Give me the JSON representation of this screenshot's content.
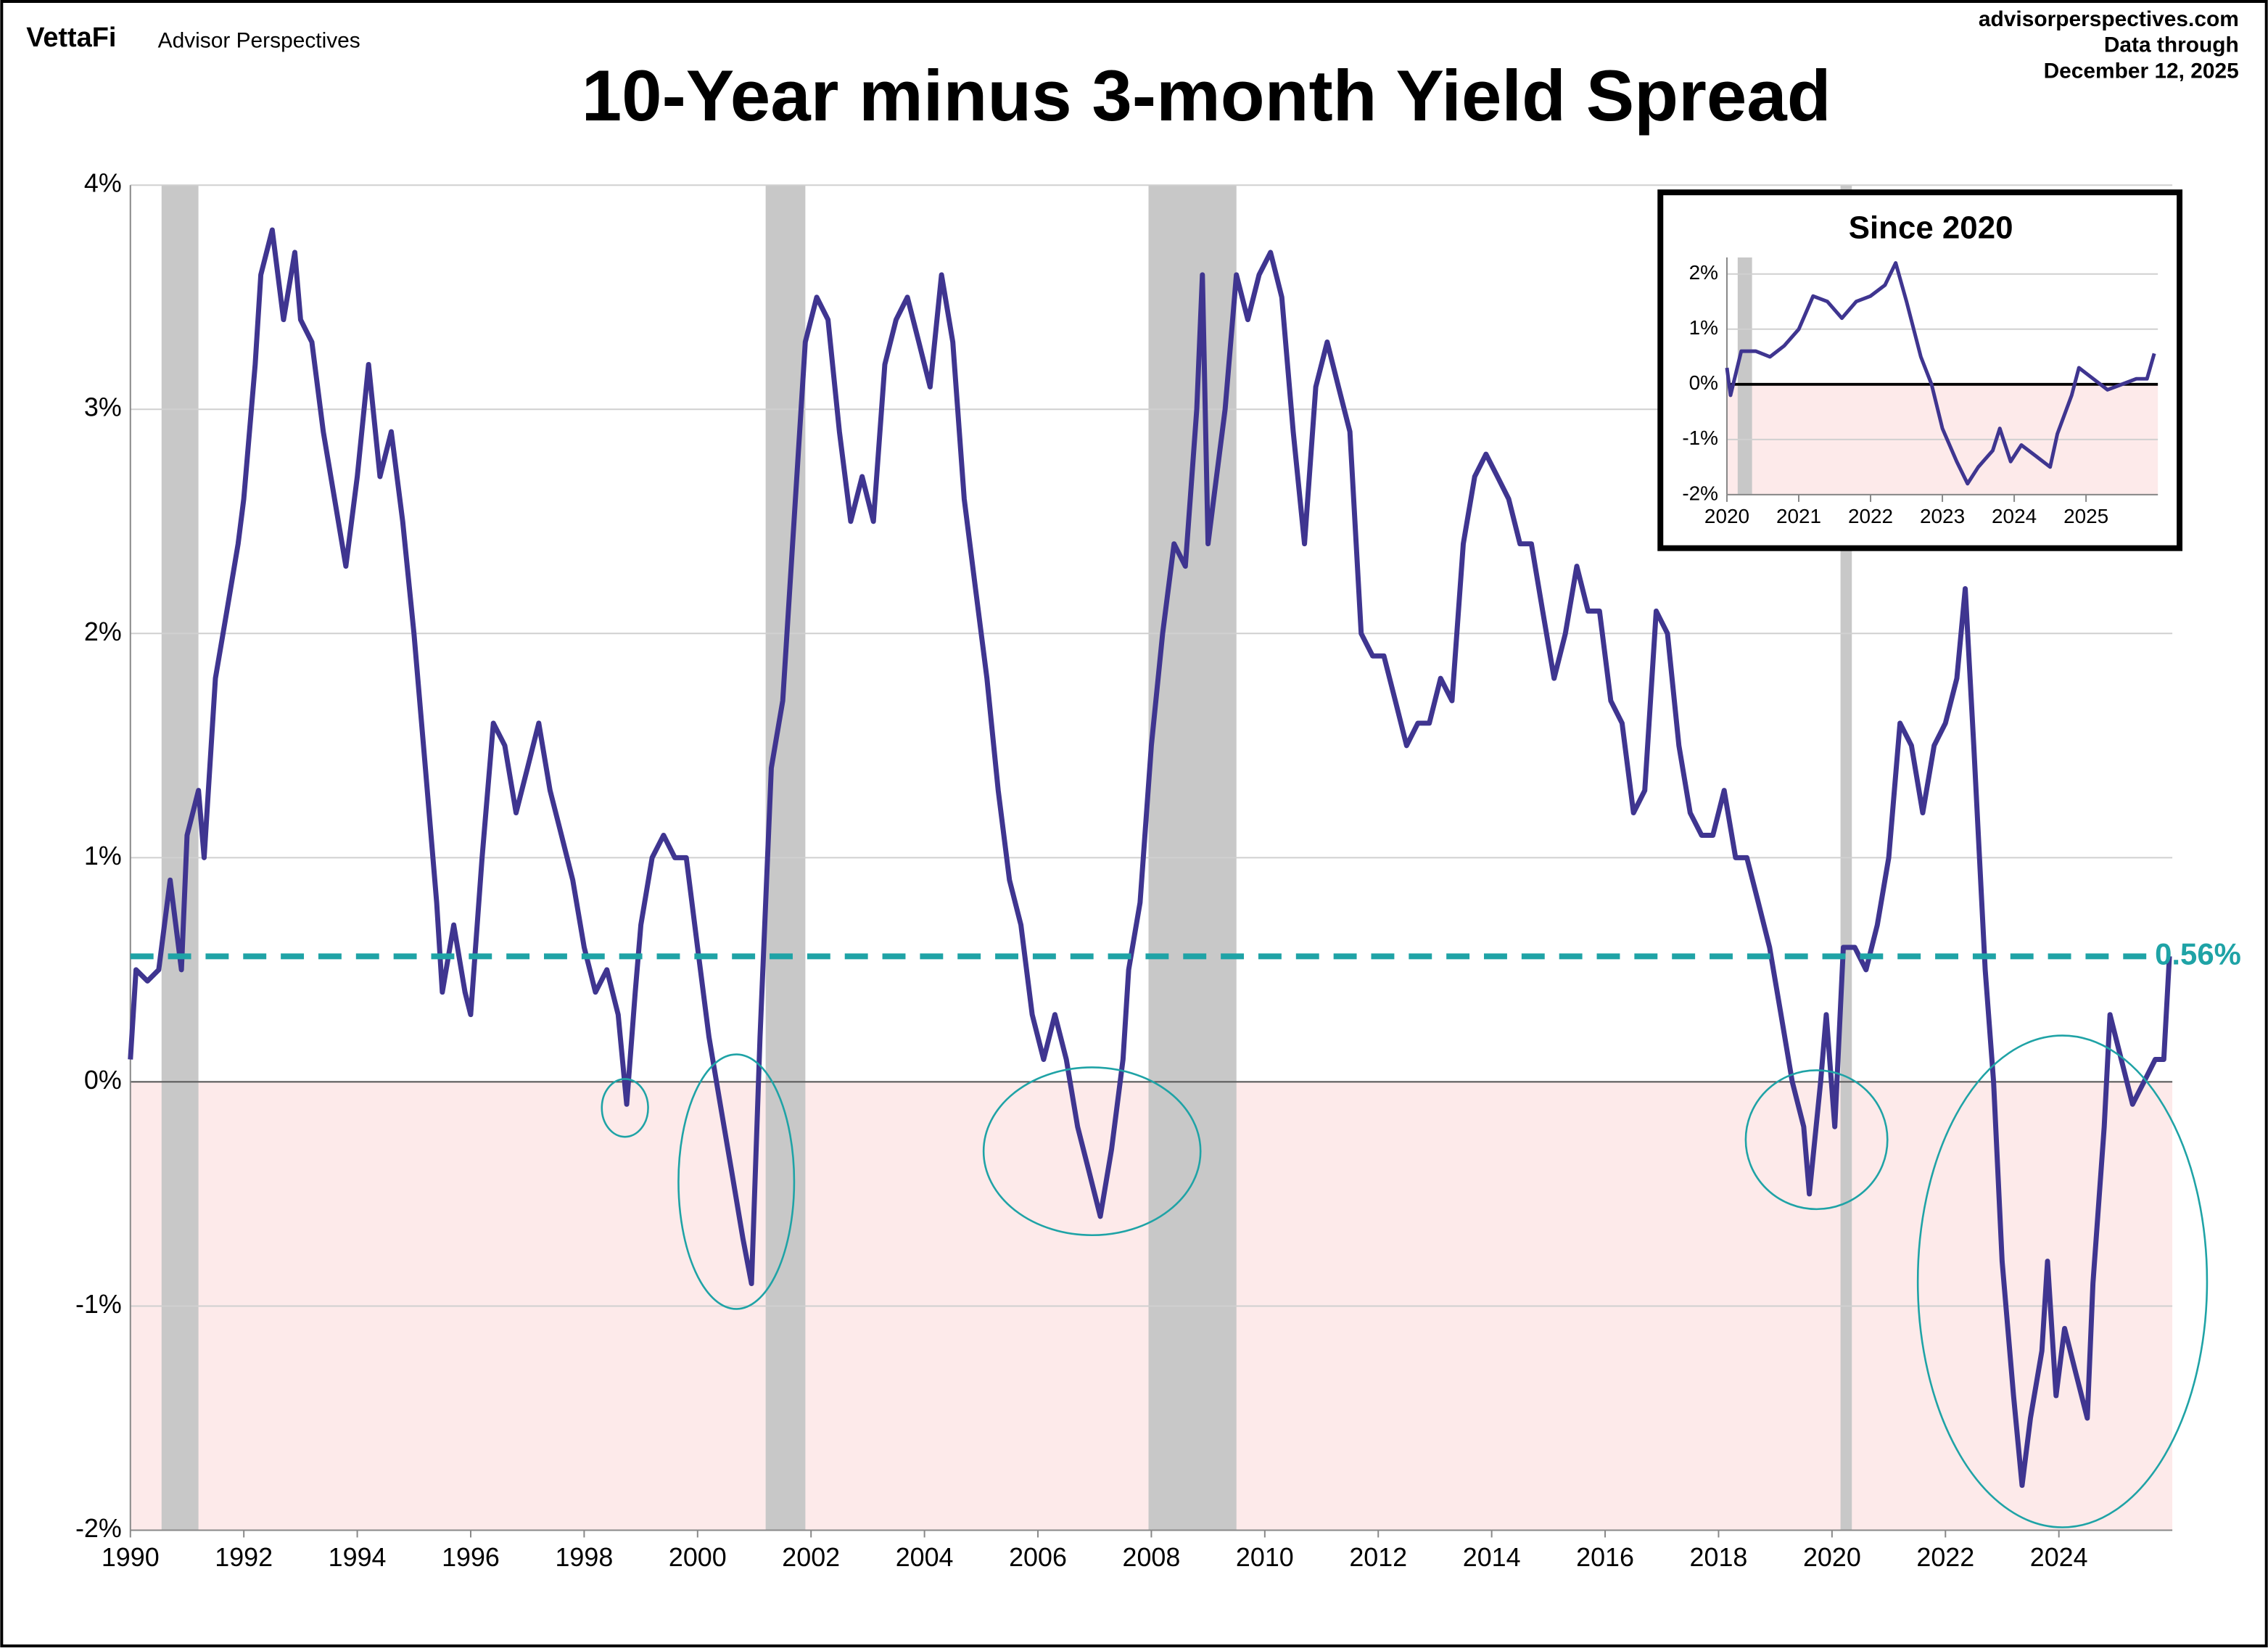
{
  "header": {
    "brand": "VettaFi",
    "publisher": "Advisor Perspectives",
    "site": "advisorperspectives.com",
    "note": "Data through",
    "date": "December 12, 2025"
  },
  "chart_data": [
    {
      "type": "line",
      "title": "10-Year minus 3-month Yield Spread",
      "x": [
        1990.0,
        1990.1,
        1990.3,
        1990.5,
        1990.7,
        1990.9,
        1991.0,
        1991.2,
        1991.3,
        1991.5,
        1991.7,
        1991.9,
        1992.0,
        1992.2,
        1992.3,
        1992.5,
        1992.7,
        1992.9,
        1993.0,
        1993.2,
        1993.4,
        1993.6,
        1993.8,
        1994.0,
        1994.2,
        1994.4,
        1994.6,
        1994.8,
        1995.0,
        1995.2,
        1995.4,
        1995.5,
        1995.7,
        1995.9,
        1996.0,
        1996.2,
        1996.4,
        1996.6,
        1996.8,
        1997.0,
        1997.2,
        1997.4,
        1997.6,
        1997.8,
        1998.0,
        1998.2,
        1998.4,
        1998.6,
        1998.75,
        1998.9,
        1999.0,
        1999.2,
        1999.4,
        1999.6,
        1999.8,
        2000.0,
        2000.2,
        2000.4,
        2000.6,
        2000.8,
        2000.95,
        2001.1,
        2001.3,
        2001.5,
        2001.7,
        2001.9,
        2002.1,
        2002.3,
        2002.5,
        2002.7,
        2002.9,
        2003.1,
        2003.3,
        2003.5,
        2003.7,
        2003.9,
        2004.1,
        2004.3,
        2004.5,
        2004.7,
        2004.9,
        2005.1,
        2005.3,
        2005.5,
        2005.7,
        2005.9,
        2006.1,
        2006.3,
        2006.5,
        2006.7,
        2006.9,
        2007.1,
        2007.3,
        2007.5,
        2007.6,
        2007.8,
        2008.0,
        2008.2,
        2008.4,
        2008.6,
        2008.8,
        2008.9,
        2009.0,
        2009.1,
        2009.3,
        2009.5,
        2009.7,
        2009.9,
        2010.1,
        2010.3,
        2010.5,
        2010.7,
        2010.9,
        2011.1,
        2011.3,
        2011.5,
        2011.7,
        2011.9,
        2012.1,
        2012.3,
        2012.5,
        2012.7,
        2012.9,
        2013.1,
        2013.3,
        2013.5,
        2013.7,
        2013.9,
        2014.1,
        2014.3,
        2014.5,
        2014.7,
        2014.9,
        2015.1,
        2015.3,
        2015.5,
        2015.7,
        2015.9,
        2016.1,
        2016.3,
        2016.5,
        2016.7,
        2016.9,
        2017.1,
        2017.3,
        2017.5,
        2017.7,
        2017.9,
        2018.1,
        2018.3,
        2018.5,
        2018.7,
        2018.9,
        2019.1,
        2019.3,
        2019.5,
        2019.6,
        2019.8,
        2019.9,
        2020.05,
        2020.2,
        2020.4,
        2020.6,
        2020.8,
        2021.0,
        2021.2,
        2021.4,
        2021.6,
        2021.8,
        2022.0,
        2022.2,
        2022.35,
        2022.5,
        2022.7,
        2022.85,
        2023.0,
        2023.2,
        2023.35,
        2023.5,
        2023.7,
        2023.8,
        2023.95,
        2024.1,
        2024.3,
        2024.5,
        2024.6,
        2024.8,
        2024.9,
        2025.1,
        2025.3,
        2025.5,
        2025.7,
        2025.85,
        2025.95
      ],
      "series": [
        {
          "color": "#3f3590",
          "values": [
            0.1,
            0.5,
            0.45,
            0.5,
            0.9,
            0.5,
            1.1,
            1.3,
            1.0,
            1.8,
            2.1,
            2.4,
            2.6,
            3.2,
            3.6,
            3.8,
            3.4,
            3.7,
            3.4,
            3.3,
            2.9,
            2.6,
            2.3,
            2.7,
            3.2,
            2.7,
            2.9,
            2.5,
            2.0,
            1.4,
            0.8,
            0.4,
            0.7,
            0.4,
            0.3,
            1.0,
            1.6,
            1.5,
            1.2,
            1.4,
            1.6,
            1.3,
            1.1,
            0.9,
            0.6,
            0.4,
            0.5,
            0.3,
            -0.1,
            0.4,
            0.7,
            1.0,
            1.1,
            1.0,
            1.0,
            0.6,
            0.2,
            -0.1,
            -0.4,
            -0.7,
            -0.9,
            0.2,
            1.4,
            1.7,
            2.5,
            3.3,
            3.5,
            3.4,
            2.9,
            2.5,
            2.7,
            2.5,
            3.2,
            3.4,
            3.5,
            3.3,
            3.1,
            3.6,
            3.3,
            2.6,
            2.2,
            1.8,
            1.3,
            0.9,
            0.7,
            0.3,
            0.1,
            0.3,
            0.1,
            -0.2,
            -0.4,
            -0.6,
            -0.3,
            0.1,
            0.5,
            0.8,
            1.5,
            2.0,
            2.4,
            2.3,
            3.0,
            3.6,
            2.4,
            2.6,
            3.0,
            3.6,
            3.4,
            3.6,
            3.7,
            3.5,
            2.9,
            2.4,
            3.1,
            3.3,
            3.1,
            2.9,
            2.0,
            1.9,
            1.9,
            1.7,
            1.5,
            1.6,
            1.6,
            1.8,
            1.7,
            2.4,
            2.7,
            2.8,
            2.7,
            2.6,
            2.4,
            2.4,
            2.1,
            1.8,
            2.0,
            2.3,
            2.1,
            2.1,
            1.7,
            1.6,
            1.2,
            1.3,
            2.1,
            2.0,
            1.5,
            1.2,
            1.1,
            1.1,
            1.3,
            1.0,
            1.0,
            0.8,
            0.6,
            0.3,
            0.0,
            -0.2,
            -0.5,
            0.0,
            0.3,
            -0.2,
            0.6,
            0.6,
            0.5,
            0.7,
            1.0,
            1.6,
            1.5,
            1.2,
            1.5,
            1.6,
            1.8,
            2.2,
            1.5,
            0.5,
            0.0,
            -0.8,
            -1.4,
            -1.8,
            -1.5,
            -1.2,
            -0.8,
            -1.4,
            -1.1,
            -1.3,
            -1.5,
            -0.9,
            -0.2,
            0.3,
            0.1,
            -0.1,
            0.0,
            0.1,
            0.1,
            0.56
          ]
        }
      ],
      "xlim": [
        1990,
        2026
      ],
      "xticks": [
        1990,
        1992,
        1994,
        1996,
        1998,
        2000,
        2002,
        2004,
        2006,
        2008,
        2010,
        2012,
        2014,
        2016,
        2018,
        2020,
        2022,
        2024
      ],
      "ylim": [
        -2,
        4
      ],
      "yticks": [
        {
          "value": -2,
          "label": "-2%"
        },
        {
          "value": -1,
          "label": "-1%"
        },
        {
          "value": 0,
          "label": "0%"
        },
        {
          "value": 1,
          "label": "1%"
        },
        {
          "value": 2,
          "label": "2%"
        },
        {
          "value": 3,
          "label": "3%"
        },
        {
          "value": 4,
          "label": "4%"
        }
      ],
      "grid": true,
      "recessions": [
        [
          1990.55,
          1991.2
        ],
        [
          2001.2,
          2001.9
        ],
        [
          2007.95,
          2009.5
        ],
        [
          2020.15,
          2020.35
        ]
      ],
      "recession_color": "#c8c8c8",
      "negative_fill": "#fdeaea",
      "reference_line": {
        "value": 0.56,
        "label": "0.56%",
        "color": "#1fa3a6"
      }
    },
    {
      "type": "line",
      "title": "Since 2020",
      "x": [
        2020.0,
        2020.05,
        2020.2,
        2020.4,
        2020.6,
        2020.8,
        2021.0,
        2021.2,
        2021.4,
        2021.6,
        2021.8,
        2022.0,
        2022.2,
        2022.35,
        2022.5,
        2022.7,
        2022.85,
        2023.0,
        2023.2,
        2023.35,
        2023.5,
        2023.7,
        2023.8,
        2023.95,
        2024.1,
        2024.3,
        2024.5,
        2024.6,
        2024.8,
        2024.9,
        2025.1,
        2025.3,
        2025.5,
        2025.7,
        2025.85,
        2025.95
      ],
      "series": [
        {
          "color": "#3f3590",
          "values": [
            0.3,
            -0.2,
            0.6,
            0.6,
            0.5,
            0.7,
            1.0,
            1.6,
            1.5,
            1.2,
            1.5,
            1.6,
            1.8,
            2.2,
            1.5,
            0.5,
            0.0,
            -0.8,
            -1.4,
            -1.8,
            -1.5,
            -1.2,
            -0.8,
            -1.4,
            -1.1,
            -1.3,
            -1.5,
            -0.9,
            -0.2,
            0.3,
            0.1,
            -0.1,
            0.0,
            0.1,
            0.1,
            0.56
          ]
        }
      ],
      "xlim": [
        2020,
        2026
      ],
      "xticks": [
        2020,
        2021,
        2022,
        2023,
        2024,
        2025
      ],
      "ylim": [
        -2,
        2.3
      ],
      "yticks": [
        {
          "value": -2,
          "label": "-2%"
        },
        {
          "value": -1,
          "label": "-1%"
        },
        {
          "value": 0,
          "label": "0%"
        },
        {
          "value": 1,
          "label": "1%"
        },
        {
          "value": 2,
          "label": "2%"
        }
      ],
      "grid": true,
      "recessions": [
        [
          2020.15,
          2020.35
        ]
      ],
      "recession_color": "#c8c8c8",
      "negative_fill": "#fdeaea"
    }
  ]
}
